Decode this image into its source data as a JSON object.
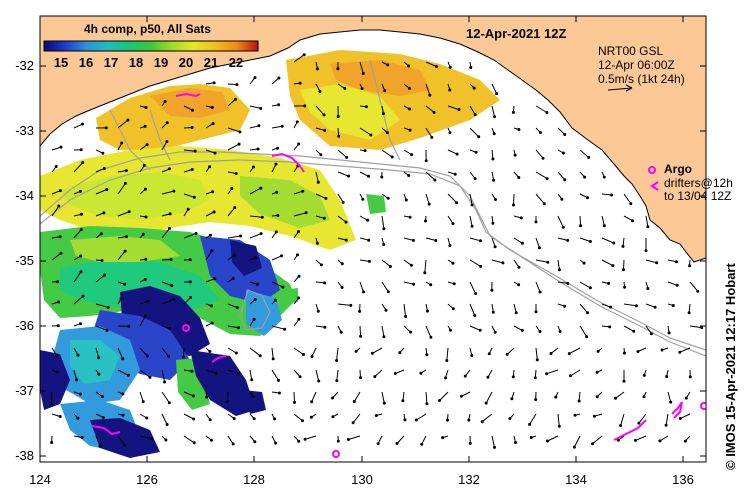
{
  "header": {
    "composite_title": "4h comp, p50, All Sats",
    "date_title": "12-Apr-2021 12Z"
  },
  "colorbar": {
    "labels": [
      "15",
      "16",
      "17",
      "18",
      "19",
      "20",
      "21",
      "22"
    ],
    "min": 14.3,
    "max": 23.0,
    "stops": [
      "#08087a",
      "#1e3cc8",
      "#2896dc",
      "#1ebebe",
      "#14c878",
      "#3cc83c",
      "#a0dc28",
      "#e6e628",
      "#f0be1e",
      "#f08c14",
      "#dc4614",
      "#b4140a"
    ]
  },
  "vector_legend": {
    "line1": "NRT00 GSL",
    "line2": "12-Apr 06:00Z",
    "line3": "0.5m/s (1kt 24h)"
  },
  "argo_legend": {
    "label": "Argo",
    "drifters1": "drifters@12h",
    "drifters2": "to 13/04 12Z",
    "color": "#ff00ff"
  },
  "axes": {
    "lat_labels": [
      "-32",
      "-33",
      "-34",
      "-35",
      "-36",
      "-37",
      "-38"
    ],
    "lon_labels": [
      "124",
      "126",
      "128",
      "130",
      "132",
      "134",
      "136"
    ]
  },
  "credit": "© IMOS 15-Apr-2021 12:17 Hobart",
  "colors": {
    "land": "#fcc896",
    "background": "#ffffff",
    "isobath": "#a0a0a0",
    "argo": "#ff00ff"
  }
}
